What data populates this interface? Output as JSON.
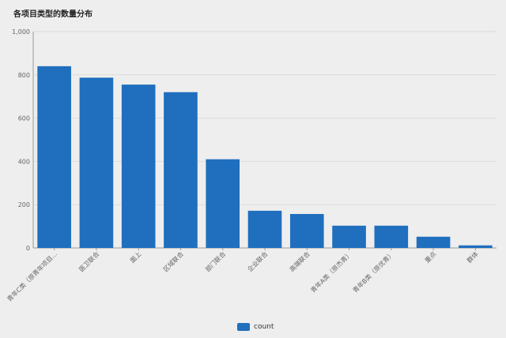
{
  "title": "各项目类型的数量分布",
  "colors": {
    "bar": "#1f6fbe",
    "grid": "#dcdcdc",
    "axis": "#999999",
    "text": "#666666"
  },
  "legend": {
    "label": "count"
  },
  "chart_data": {
    "type": "bar",
    "title": "各项目类型的数量分布",
    "xlabel": "",
    "ylabel": "",
    "categories": [
      "青年C类（原青年项目...",
      "医卫联合",
      "面上",
      "区域联合",
      "部门联合",
      "企业联合",
      "高端联合",
      "青年A类（原杰青）",
      "青年B类（原优青）",
      "重点",
      "群体"
    ],
    "series": [
      {
        "name": "count",
        "values": [
          840,
          787,
          755,
          720,
          410,
          172,
          157,
          103,
          103,
          52,
          12
        ]
      }
    ],
    "ylim": [
      0,
      1000
    ],
    "yticks": [
      0,
      200,
      400,
      600,
      800,
      1000
    ],
    "ytick_labels": [
      "0",
      "200",
      "400",
      "600",
      "800",
      "1,000"
    ],
    "grid": true,
    "legend_position": "bottom-center"
  }
}
